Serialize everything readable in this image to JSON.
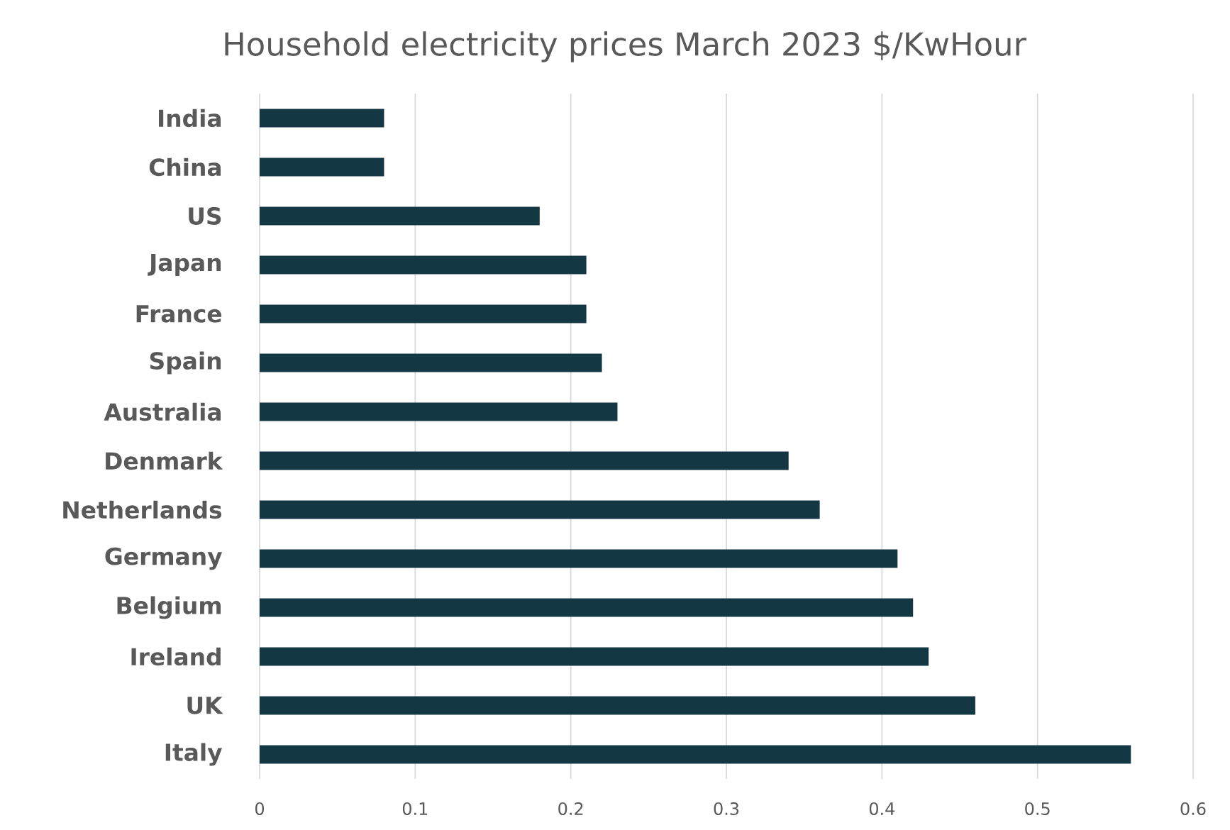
{
  "chart_data": {
    "type": "bar",
    "orientation": "horizontal",
    "title": "Household electricity prices March 2023 $/KwHour",
    "categories": [
      "India",
      "China",
      "US",
      "Japan",
      "France",
      "Spain",
      "Australia",
      "Denmark",
      "Netherlands",
      "Germany",
      "Belgium",
      "Ireland",
      "UK",
      "Italy"
    ],
    "values": [
      0.08,
      0.08,
      0.18,
      0.21,
      0.21,
      0.22,
      0.23,
      0.34,
      0.36,
      0.41,
      0.42,
      0.43,
      0.46,
      0.56
    ],
    "color": "#143843",
    "xlim": [
      0,
      0.6
    ],
    "xticks": [
      0,
      0.1,
      0.2,
      0.3,
      0.4,
      0.5,
      0.6
    ],
    "grid": "x"
  }
}
